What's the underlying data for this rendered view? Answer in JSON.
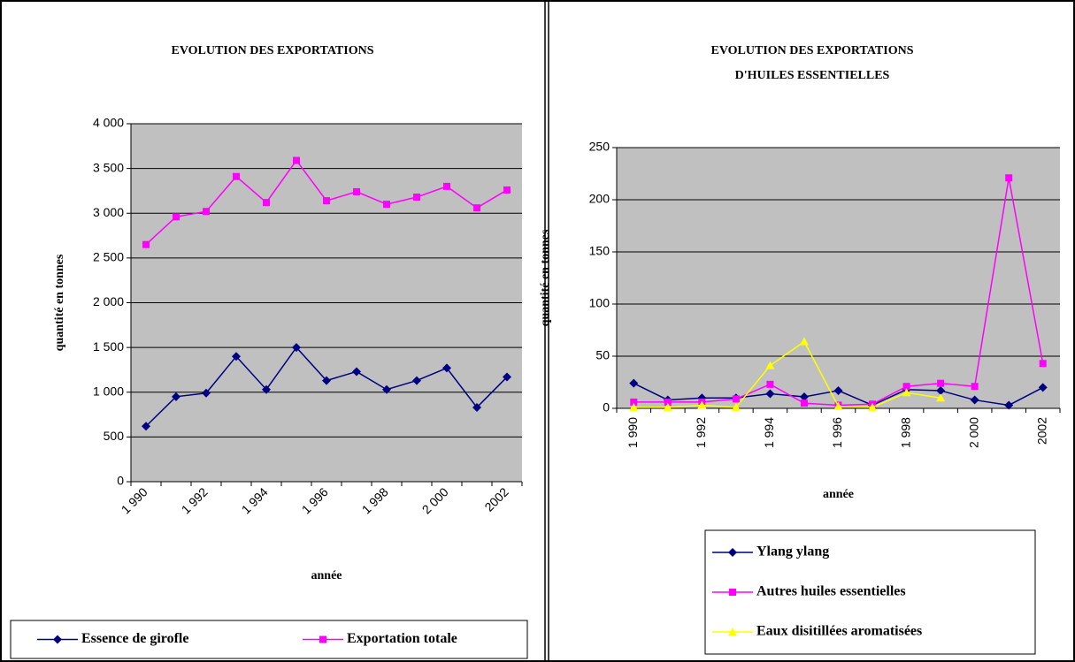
{
  "chart_data": [
    {
      "type": "line",
      "title": [
        "EVOLUTION DES EXPORTATIONS"
      ],
      "y_label": "quantité en tonnes",
      "x_label": "année",
      "categories": [
        "1 990",
        null,
        "1 992",
        null,
        "1 994",
        null,
        "1 996",
        null,
        "1 998",
        null,
        "2 000",
        null,
        "2002"
      ],
      "ylim": [
        0,
        4000
      ],
      "yticks": [
        0,
        500,
        {
          "value": 1000,
          "label": "1 000"
        },
        {
          "value": 1500,
          "label": "1 500"
        },
        {
          "value": 2000,
          "label": "2 000"
        },
        {
          "value": 2500,
          "label": "2 500"
        },
        {
          "value": 3000,
          "label": "3 000"
        },
        {
          "value": 3500,
          "label": "3 500"
        },
        {
          "value": 4000,
          "label": "4 000"
        }
      ],
      "grid": true,
      "legend": "bottom",
      "label_rotation": 45,
      "series": [
        {
          "name": "Essence de girofle",
          "color": "#000080",
          "marker": "diamond",
          "values": [
            620,
            950,
            990,
            1400,
            1030,
            1500,
            1130,
            1230,
            1030,
            1130,
            1270,
            830,
            1170
          ]
        },
        {
          "name": "Exportation totale",
          "color": "#ff00ff",
          "marker": "square",
          "values": [
            2650,
            2960,
            3020,
            3410,
            3120,
            3590,
            3140,
            3240,
            3100,
            3180,
            3300,
            3060,
            3260
          ]
        }
      ]
    },
    {
      "type": "line",
      "title": [
        "EVOLUTION DES EXPORTATIONS",
        "D'HUILES ESSENTIELLES"
      ],
      "y_label": "quantité en tonnes",
      "x_label": "année",
      "categories": [
        "1 990",
        null,
        "1 992",
        null,
        "1 994",
        null,
        "1 996",
        null,
        "1 998",
        null,
        "2 000",
        null,
        "2002"
      ],
      "ylim": [
        0,
        250
      ],
      "yticks": [
        0,
        50,
        100,
        150,
        200,
        250
      ],
      "grid": true,
      "legend": "bottom",
      "label_rotation": 90,
      "series": [
        {
          "name": "Ylang ylang",
          "color": "#000080",
          "marker": "diamond",
          "values": [
            24,
            8,
            10,
            10,
            14,
            11,
            17,
            3,
            18,
            17,
            8,
            3,
            20
          ]
        },
        {
          "name": "Autres huiles essentielles",
          "color": "#ff00ff",
          "marker": "square",
          "values": [
            6,
            6,
            6,
            9,
            23,
            5,
            3,
            4,
            21,
            24,
            21,
            221,
            43
          ]
        },
        {
          "name": "Eaux disitillées aromatisées",
          "color": "#ffff00",
          "marker": "triangle",
          "values": [
            1,
            1,
            3,
            1,
            41,
            64,
            2,
            1,
            15,
            10,
            null,
            null,
            null
          ]
        }
      ]
    }
  ]
}
